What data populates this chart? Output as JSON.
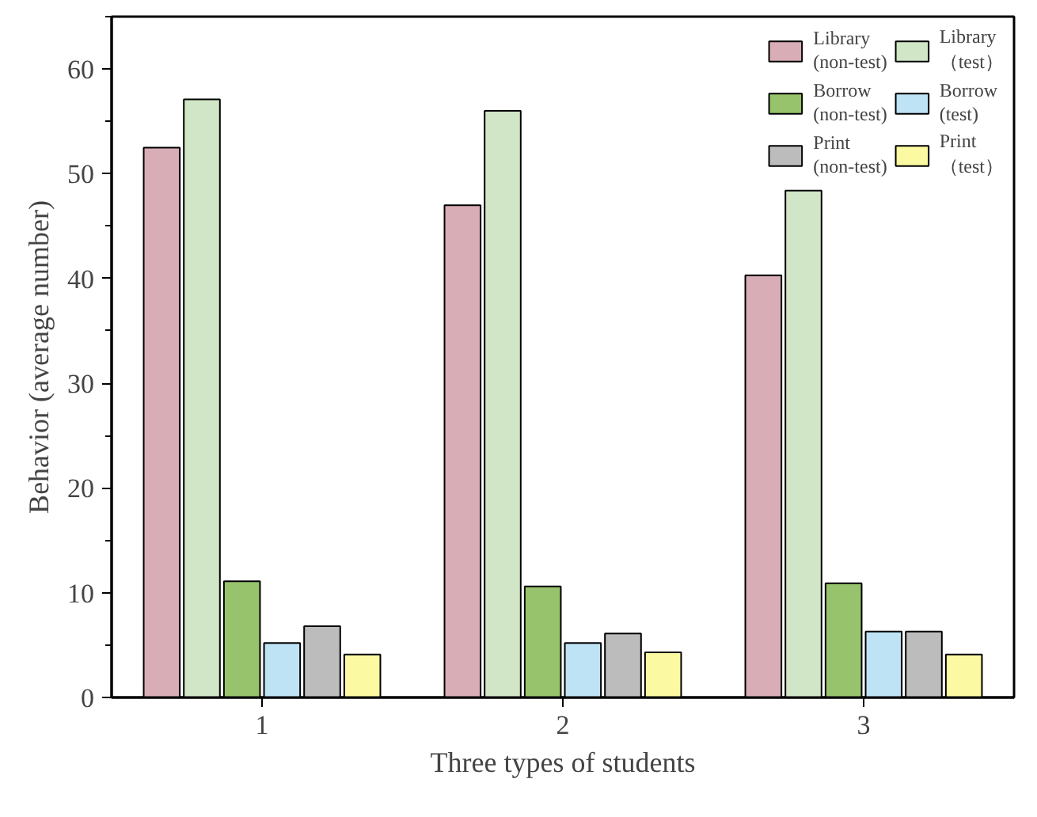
{
  "chart_data": {
    "type": "bar",
    "xlabel": "Three types of students",
    "ylabel": "Behavior (average number)",
    "categories": [
      "1",
      "2",
      "3"
    ],
    "series": [
      {
        "name": "Library\n(non-test)",
        "color": "#d9adb6",
        "values": [
          52.5,
          47,
          40.3
        ]
      },
      {
        "name": "Library\n（test）",
        "color": "#d0e6c6",
        "values": [
          57.1,
          56,
          48.4
        ]
      },
      {
        "name": "Borrow\n(non-test)",
        "color": "#96c36b",
        "values": [
          11.1,
          10.6,
          10.9
        ]
      },
      {
        "name": "Borrow\n(test)",
        "color": "#bde3f5",
        "values": [
          5.2,
          5.2,
          6.3
        ]
      },
      {
        "name": "Print\n(non-test)",
        "color": "#bcbcbc",
        "values": [
          6.8,
          6.1,
          6.3
        ]
      },
      {
        "name": "Print\n（test）",
        "color": "#fbf9a2",
        "values": [
          4.1,
          4.3,
          4.1
        ]
      }
    ],
    "ylim": [
      0,
      65
    ],
    "yticks": [
      0,
      10,
      20,
      30,
      40,
      50,
      60
    ],
    "grid": false,
    "legend": "top right"
  }
}
